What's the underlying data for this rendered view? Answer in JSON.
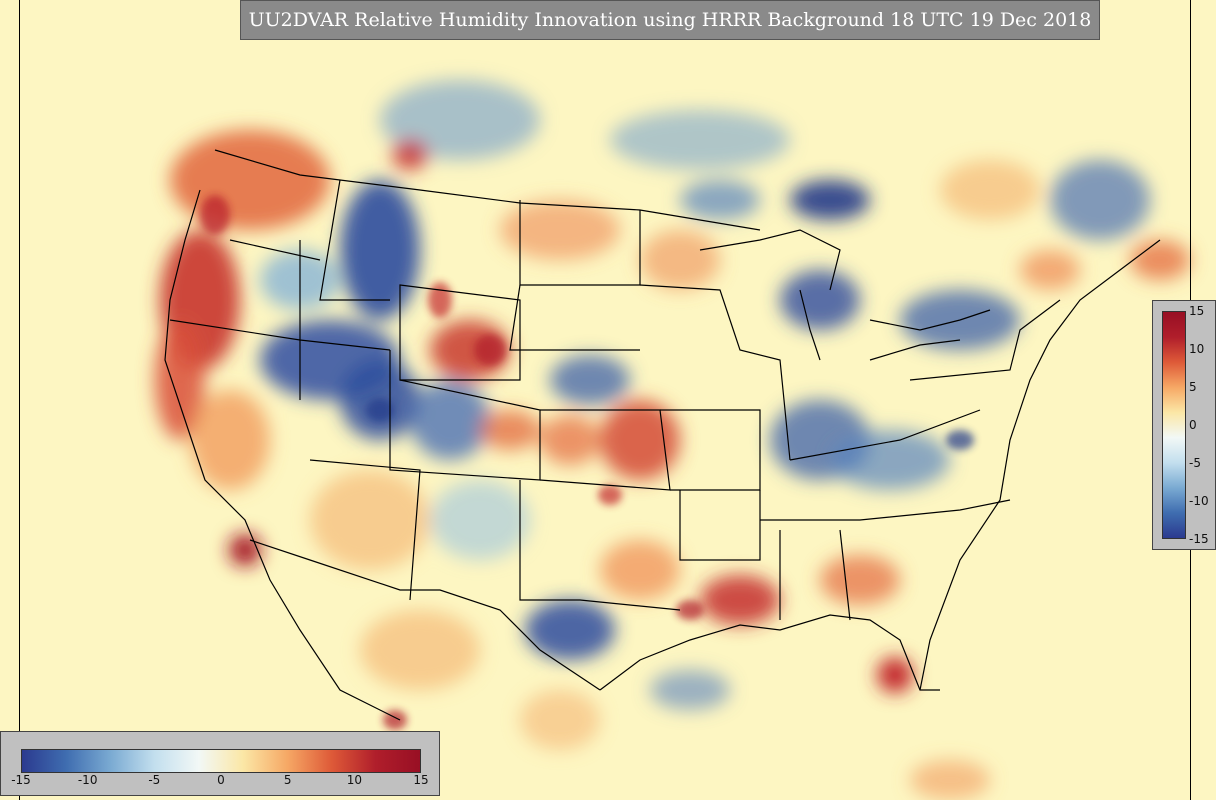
{
  "title": "UU2DVAR Relative Humidity Innovation using HRRR Background 18 UTC 19 Dec 2018",
  "colorbar": {
    "min": -15,
    "max": 15,
    "colors": [
      "#2b3a8f",
      "#3f6db0",
      "#7aaad2",
      "#c3dfee",
      "#f2f8f6",
      "#fbe7a6",
      "#f6a865",
      "#de5a38",
      "#b01e2b",
      "#980f24"
    ],
    "horizontal_ticks": [
      "-15",
      "-10",
      "-5",
      "0",
      "5",
      "10",
      "15"
    ],
    "vertical_ticks": [
      "15",
      "10",
      "5",
      "0",
      "-5",
      "-10",
      "-15"
    ]
  },
  "map_data": {
    "background_color": "#fdf6c2",
    "border_color": "#000000"
  }
}
